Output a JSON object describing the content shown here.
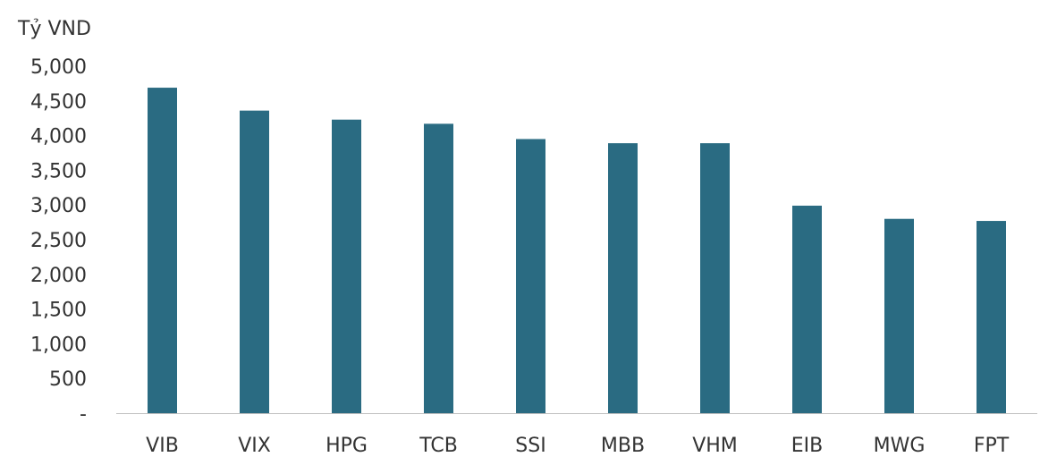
{
  "chart_data": {
    "type": "bar",
    "title": "",
    "unit_label": "Tỷ VND",
    "xlabel": "",
    "ylabel": "",
    "categories": [
      "VIB",
      "VIX",
      "HPG",
      "TCB",
      "SSI",
      "MBB",
      "VHM",
      "EIB",
      "MWG",
      "FPT"
    ],
    "values": [
      4690,
      4360,
      4230,
      4170,
      3950,
      3890,
      3890,
      2990,
      2800,
      2770
    ],
    "ylim": [
      0,
      5000
    ],
    "yticks": [
      0,
      500,
      1000,
      1500,
      2000,
      2500,
      3000,
      3500,
      4000,
      4500,
      5000
    ],
    "ytick_labels": [
      "-",
      "500",
      "1,000",
      "1,500",
      "2,000",
      "2,500",
      "3,000",
      "3,500",
      "4,000",
      "4,500",
      "5,000"
    ],
    "grid": false,
    "legend": "none",
    "bar_color": "#2a6b82",
    "axis_color": "#bfbfbf"
  }
}
